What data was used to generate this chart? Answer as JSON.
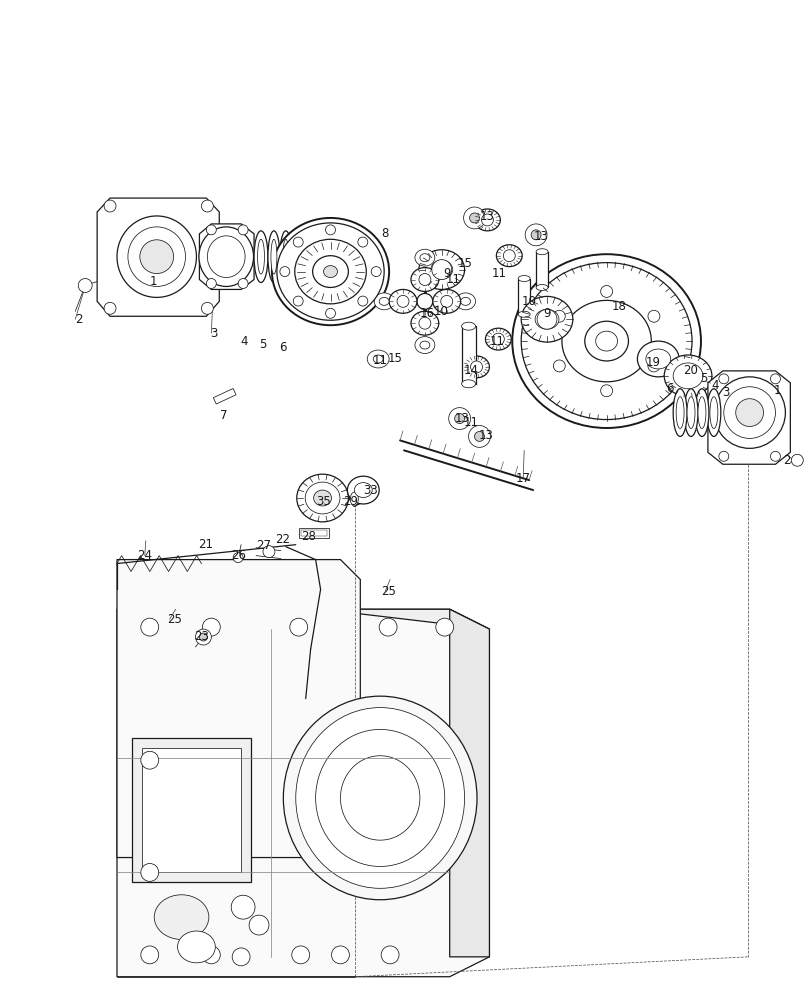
{
  "bg_color": "#ffffff",
  "line_color": "#1a1a1a",
  "fig_width": 8.12,
  "fig_height": 10.0,
  "dpi": 100,
  "lw_thin": 0.55,
  "lw_med": 0.9,
  "lw_thick": 1.4,
  "font_size": 8.5,
  "label_positions": [
    [
      "2",
      77,
      318
    ],
    [
      "1",
      152,
      280
    ],
    [
      "3",
      213,
      332
    ],
    [
      "4",
      243,
      340
    ],
    [
      "5",
      262,
      343
    ],
    [
      "6",
      282,
      346
    ],
    [
      "7",
      222,
      415
    ],
    [
      "8",
      385,
      232
    ],
    [
      "9",
      447,
      272
    ],
    [
      "10",
      441,
      310
    ],
    [
      "16",
      427,
      312
    ],
    [
      "11",
      380,
      360
    ],
    [
      "15",
      395,
      358
    ],
    [
      "11",
      453,
      278
    ],
    [
      "15",
      466,
      262
    ],
    [
      "11",
      500,
      272
    ],
    [
      "13",
      488,
      215
    ],
    [
      "13",
      542,
      235
    ],
    [
      "10",
      530,
      300
    ],
    [
      "9",
      548,
      312
    ],
    [
      "11",
      498,
      340
    ],
    [
      "14",
      472,
      370
    ],
    [
      "13",
      462,
      418
    ],
    [
      "18",
      621,
      305
    ],
    [
      "19",
      655,
      362
    ],
    [
      "6",
      672,
      388
    ],
    [
      "20",
      693,
      370
    ],
    [
      "5",
      706,
      378
    ],
    [
      "4",
      717,
      385
    ],
    [
      "3",
      728,
      392
    ],
    [
      "1",
      780,
      390
    ],
    [
      "2",
      790,
      460
    ],
    [
      "17",
      524,
      478
    ],
    [
      "29",
      350,
      502
    ],
    [
      "33",
      370,
      490
    ],
    [
      "35",
      323,
      502
    ],
    [
      "24",
      143,
      556
    ],
    [
      "21",
      204,
      545
    ],
    [
      "26",
      237,
      556
    ],
    [
      "27",
      263,
      546
    ],
    [
      "22",
      282,
      540
    ],
    [
      "28",
      308,
      537
    ],
    [
      "25",
      173,
      620
    ],
    [
      "23",
      200,
      637
    ],
    [
      "25",
      388,
      592
    ],
    [
      "11",
      472,
      422
    ],
    [
      "13",
      487,
      435
    ]
  ]
}
